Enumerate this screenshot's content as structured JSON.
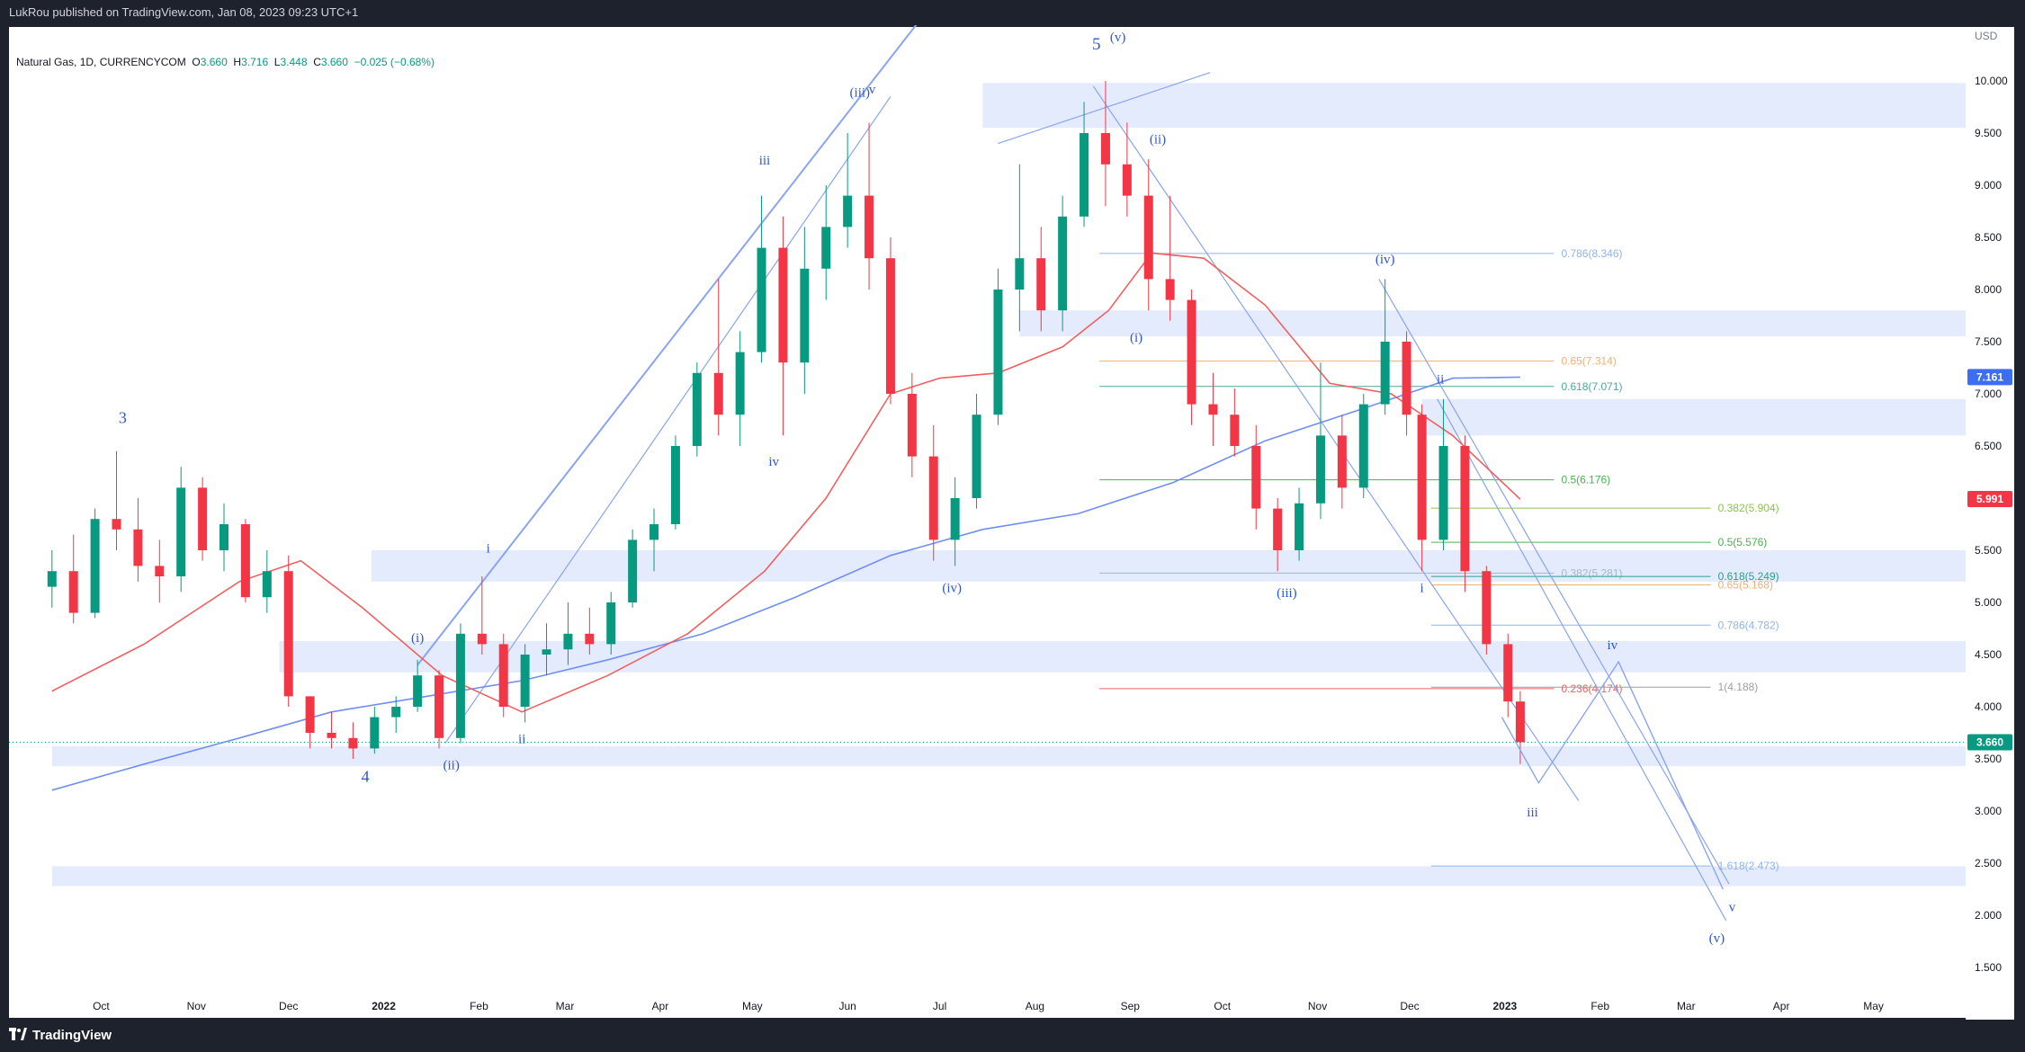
{
  "header": {
    "published": "LukRou published on TradingView.com, Jan 08, 2023 09:23 UTC+1"
  },
  "legend": {
    "symbol": "Natural Gas, 1D, CURRENCYCOM",
    "o_label": "O",
    "o": "3.660",
    "h_label": "H",
    "h": "3.716",
    "l_label": "L",
    "l": "3.448",
    "c_label": "C",
    "c": "3.660",
    "change": "−0.025 (−0.68%)"
  },
  "footer": {
    "brand": "TradingView"
  },
  "colors": {
    "up": "#089981",
    "down": "#f23645",
    "zone": "#dbe4fb",
    "ma_fast": "#f06060",
    "ma_slow": "#6f8ff0",
    "wave": "#2d56d6"
  },
  "chart_data": {
    "type": "candlestick",
    "instrument": "Natural Gas",
    "timeframe": "1D",
    "currency_label": "USD",
    "y_ticks": [
      "10.000",
      "9.500",
      "9.000",
      "8.500",
      "8.000",
      "7.500",
      "7.000",
      "6.500",
      "6.000",
      "5.500",
      "5.000",
      "4.500",
      "4.000",
      "3.500",
      "3.000",
      "2.500",
      "2.000",
      "1.500"
    ],
    "x_ticks": [
      "Oct",
      "Nov",
      "Dec",
      "2022",
      "Feb",
      "Mar",
      "Apr",
      "May",
      "Jun",
      "Jul",
      "Aug",
      "Sep",
      "Oct",
      "Nov",
      "Dec",
      "2023",
      "Feb",
      "Mar",
      "Apr",
      "May"
    ],
    "ylim": [
      1.15,
      10.45
    ],
    "price_tags": [
      {
        "value": 7.161,
        "label": "7.161",
        "color": "#3d6df2"
      },
      {
        "value": 5.991,
        "label": "5.991",
        "color": "#f23645"
      },
      {
        "value": 3.66,
        "label": "3.660",
        "color": "#089981"
      }
    ],
    "last_price": 3.66,
    "zones": [
      {
        "from": 9.55,
        "to": 9.98,
        "start": "2022-07-15"
      },
      {
        "from": 7.55,
        "to": 7.8,
        "start": "2022-07-27"
      },
      {
        "from": 6.6,
        "to": 6.95,
        "start": "2022-12-05"
      },
      {
        "from": 5.2,
        "to": 5.5,
        "start": "2021-12-28"
      },
      {
        "from": 4.33,
        "to": 4.63,
        "start": "2021-11-28"
      },
      {
        "from": 3.43,
        "to": 3.62,
        "start": "2021-09-15"
      },
      {
        "from": 2.28,
        "to": 2.47,
        "start": "2021-09-15"
      }
    ],
    "fib_levels": [
      {
        "label": "0.786(8.346)",
        "value": 8.346,
        "color": "#90b4ee",
        "from": "2022-08-22",
        "to": "2023-01-17"
      },
      {
        "label": "0.65(7.314)",
        "value": 7.314,
        "color": "#f0b070",
        "from": "2022-08-22",
        "to": "2023-01-17"
      },
      {
        "label": "0.618(7.071)",
        "value": 7.071,
        "color": "#4ca998",
        "from": "2022-08-22",
        "to": "2023-01-17"
      },
      {
        "label": "0.5(6.176)",
        "value": 6.176,
        "color": "#4caf50",
        "from": "2022-08-22",
        "to": "2023-01-17"
      },
      {
        "label": "0.382(5.904)",
        "value": 5.904,
        "color": "#8bc34a",
        "from": "2022-12-08",
        "to": "2023-03-09"
      },
      {
        "label": "0.5(5.576)",
        "value": 5.576,
        "color": "#4caf50",
        "from": "2022-12-08",
        "to": "2023-03-09"
      },
      {
        "label": "0.382(5.281)",
        "value": 5.281,
        "color": "#a0b8d0",
        "from": "2022-08-22",
        "to": "2023-01-17"
      },
      {
        "label": "0.618(5.249)",
        "value": 5.249,
        "color": "#2f9c8e",
        "from": "2022-12-08",
        "to": "2023-03-09"
      },
      {
        "label": "0.65(5.168)",
        "value": 5.168,
        "color": "#f0b070",
        "from": "2022-12-08",
        "to": "2023-03-09"
      },
      {
        "label": "0.786(4.782)",
        "value": 4.782,
        "color": "#90b4ee",
        "from": "2022-12-08",
        "to": "2023-03-09"
      },
      {
        "label": "0.236(4.174)",
        "value": 4.174,
        "color": "#f06060",
        "from": "2022-08-22",
        "to": "2023-01-17"
      },
      {
        "label": "1(4.188)",
        "value": 4.188,
        "color": "#9e9e9e",
        "from": "2022-12-08",
        "to": "2023-03-09"
      },
      {
        "label": "1.618(2.473)",
        "value": 2.473,
        "color": "#90b4ee",
        "from": "2022-12-08",
        "to": "2023-03-09"
      }
    ],
    "wave_labels": [
      {
        "text": "3",
        "date": "2021-10-08",
        "price": 6.72,
        "size": 18
      },
      {
        "text": "4",
        "date": "2021-12-26",
        "price": 3.28,
        "size": 18
      },
      {
        "text": "(i)",
        "date": "2022-01-12",
        "price": 4.62,
        "size": 15
      },
      {
        "text": "(ii)",
        "date": "2022-01-23",
        "price": 3.4,
        "size": 15
      },
      {
        "text": "i",
        "date": "2022-02-04",
        "price": 5.48,
        "size": 15
      },
      {
        "text": "ii",
        "date": "2022-02-15",
        "price": 3.65,
        "size": 15
      },
      {
        "text": "iii",
        "date": "2022-05-05",
        "price": 9.2,
        "size": 15
      },
      {
        "text": "iv",
        "date": "2022-05-08",
        "price": 6.31,
        "size": 15
      },
      {
        "text": "(iii)",
        "date": "2022-06-05",
        "price": 9.85,
        "size": 15
      },
      {
        "text": "v",
        "date": "2022-06-09",
        "price": 9.88,
        "size": 15
      },
      {
        "text": "(iv)",
        "date": "2022-07-05",
        "price": 5.1,
        "size": 15
      },
      {
        "text": "5",
        "date": "2022-08-21",
        "price": 10.3,
        "size": 19
      },
      {
        "text": "(v)",
        "date": "2022-08-28",
        "price": 10.38,
        "size": 15
      },
      {
        "text": "(ii)",
        "date": "2022-09-10",
        "price": 9.4,
        "size": 15
      },
      {
        "text": "(i)",
        "date": "2022-09-03",
        "price": 7.5,
        "size": 15
      },
      {
        "text": "(iii)",
        "date": "2022-10-22",
        "price": 5.05,
        "size": 15
      },
      {
        "text": "(iv)",
        "date": "2022-11-23",
        "price": 8.25,
        "size": 15
      },
      {
        "text": "ii",
        "date": "2022-12-11",
        "price": 7.1,
        "size": 15
      },
      {
        "text": "i",
        "date": "2022-12-05",
        "price": 5.1,
        "size": 15
      },
      {
        "text": "iv",
        "date": "2023-02-05",
        "price": 4.55,
        "size": 15
      },
      {
        "text": "iii",
        "date": "2023-01-10",
        "price": 2.95,
        "size": 15
      },
      {
        "text": "v",
        "date": "2023-03-16",
        "price": 2.04,
        "size": 15
      },
      {
        "text": "(v)",
        "date": "2023-03-11",
        "price": 1.74,
        "size": 15
      }
    ],
    "projection_path": [
      {
        "date": "2022-12-31",
        "price": 3.9
      },
      {
        "date": "2023-01-12",
        "price": 3.27
      },
      {
        "date": "2023-02-07",
        "price": 4.43
      },
      {
        "date": "2023-03-13",
        "price": 2.25
      }
    ],
    "trend_lines": [
      {
        "from": {
          "date": "2022-01-12",
          "price": 4.4
        },
        "to": {
          "date": "2022-06-25",
          "price": 10.6
        }
      },
      {
        "from": {
          "date": "2022-01-21",
          "price": 3.65
        },
        "to": {
          "date": "2022-06-15",
          "price": 9.85
        }
      },
      {
        "from": {
          "date": "2022-07-20",
          "price": 9.4
        },
        "to": {
          "date": "2022-09-27",
          "price": 10.08
        }
      },
      {
        "from": {
          "date": "2022-11-21",
          "price": 8.1
        },
        "to": {
          "date": "2023-03-15",
          "price": 2.3
        }
      },
      {
        "from": {
          "date": "2022-12-10",
          "price": 6.95
        },
        "to": {
          "date": "2023-03-14",
          "price": 1.95
        }
      },
      {
        "from": {
          "date": "2022-08-20",
          "price": 9.95
        },
        "to": {
          "date": "2023-01-25",
          "price": 3.1
        }
      }
    ],
    "candles": [
      {
        "d": "2021-09-15",
        "o": 5.15,
        "h": 5.5,
        "l": 4.95,
        "c": 5.3
      },
      {
        "d": "2021-09-22",
        "o": 5.3,
        "h": 5.65,
        "l": 4.8,
        "c": 4.9
      },
      {
        "d": "2021-09-29",
        "o": 4.9,
        "h": 5.9,
        "l": 4.85,
        "c": 5.8
      },
      {
        "d": "2021-10-06",
        "o": 5.8,
        "h": 6.45,
        "l": 5.5,
        "c": 5.7
      },
      {
        "d": "2021-10-13",
        "o": 5.7,
        "h": 6.0,
        "l": 5.2,
        "c": 5.35
      },
      {
        "d": "2021-10-20",
        "o": 5.35,
        "h": 5.6,
        "l": 5.0,
        "c": 5.25
      },
      {
        "d": "2021-10-27",
        "o": 5.25,
        "h": 6.3,
        "l": 5.1,
        "c": 6.1
      },
      {
        "d": "2021-11-03",
        "o": 6.1,
        "h": 6.2,
        "l": 5.4,
        "c": 5.5
      },
      {
        "d": "2021-11-10",
        "o": 5.5,
        "h": 5.95,
        "l": 5.3,
        "c": 5.75
      },
      {
        "d": "2021-11-17",
        "o": 5.75,
        "h": 5.8,
        "l": 5.0,
        "c": 5.05
      },
      {
        "d": "2021-11-24",
        "o": 5.05,
        "h": 5.5,
        "l": 4.9,
        "c": 5.3
      },
      {
        "d": "2021-12-01",
        "o": 5.3,
        "h": 5.45,
        "l": 4.0,
        "c": 4.1
      },
      {
        "d": "2021-12-08",
        "o": 4.1,
        "h": 4.1,
        "l": 3.6,
        "c": 3.75
      },
      {
        "d": "2021-12-15",
        "o": 3.75,
        "h": 3.95,
        "l": 3.6,
        "c": 3.7
      },
      {
        "d": "2021-12-22",
        "o": 3.7,
        "h": 3.85,
        "l": 3.5,
        "c": 3.6
      },
      {
        "d": "2021-12-29",
        "o": 3.6,
        "h": 4.0,
        "l": 3.55,
        "c": 3.9
      },
      {
        "d": "2022-01-05",
        "o": 3.9,
        "h": 4.1,
        "l": 3.75,
        "c": 4.0
      },
      {
        "d": "2022-01-12",
        "o": 4.0,
        "h": 4.45,
        "l": 3.95,
        "c": 4.3
      },
      {
        "d": "2022-01-19",
        "o": 4.3,
        "h": 4.35,
        "l": 3.6,
        "c": 3.7
      },
      {
        "d": "2022-01-26",
        "o": 3.7,
        "h": 4.8,
        "l": 3.65,
        "c": 4.7
      },
      {
        "d": "2022-02-02",
        "o": 4.7,
        "h": 5.25,
        "l": 4.5,
        "c": 4.6
      },
      {
        "d": "2022-02-09",
        "o": 4.6,
        "h": 4.7,
        "l": 3.9,
        "c": 4.0
      },
      {
        "d": "2022-02-16",
        "o": 4.0,
        "h": 4.6,
        "l": 3.85,
        "c": 4.5
      },
      {
        "d": "2022-02-23",
        "o": 4.5,
        "h": 4.8,
        "l": 4.3,
        "c": 4.55
      },
      {
        "d": "2022-03-02",
        "o": 4.55,
        "h": 5.0,
        "l": 4.4,
        "c": 4.7
      },
      {
        "d": "2022-03-09",
        "o": 4.7,
        "h": 4.95,
        "l": 4.5,
        "c": 4.6
      },
      {
        "d": "2022-03-16",
        "o": 4.6,
        "h": 5.1,
        "l": 4.5,
        "c": 5.0
      },
      {
        "d": "2022-03-23",
        "o": 5.0,
        "h": 5.7,
        "l": 4.95,
        "c": 5.6
      },
      {
        "d": "2022-03-30",
        "o": 5.6,
        "h": 5.9,
        "l": 5.3,
        "c": 5.75
      },
      {
        "d": "2022-04-06",
        "o": 5.75,
        "h": 6.6,
        "l": 5.7,
        "c": 6.5
      },
      {
        "d": "2022-04-13",
        "o": 6.5,
        "h": 7.3,
        "l": 6.4,
        "c": 7.2
      },
      {
        "d": "2022-04-20",
        "o": 7.2,
        "h": 8.1,
        "l": 6.6,
        "c": 6.8
      },
      {
        "d": "2022-04-27",
        "o": 6.8,
        "h": 7.6,
        "l": 6.5,
        "c": 7.4
      },
      {
        "d": "2022-05-04",
        "o": 7.4,
        "h": 8.9,
        "l": 7.3,
        "c": 8.4
      },
      {
        "d": "2022-05-11",
        "o": 8.4,
        "h": 8.7,
        "l": 6.6,
        "c": 7.3
      },
      {
        "d": "2022-05-18",
        "o": 7.3,
        "h": 8.6,
        "l": 7.0,
        "c": 8.2
      },
      {
        "d": "2022-05-25",
        "o": 8.2,
        "h": 9.0,
        "l": 7.9,
        "c": 8.6
      },
      {
        "d": "2022-06-01",
        "o": 8.6,
        "h": 9.5,
        "l": 8.4,
        "c": 8.9
      },
      {
        "d": "2022-06-08",
        "o": 8.9,
        "h": 9.6,
        "l": 8.0,
        "c": 8.3
      },
      {
        "d": "2022-06-15",
        "o": 8.3,
        "h": 8.5,
        "l": 6.9,
        "c": 7.0
      },
      {
        "d": "2022-06-22",
        "o": 7.0,
        "h": 7.2,
        "l": 6.2,
        "c": 6.4
      },
      {
        "d": "2022-06-29",
        "o": 6.4,
        "h": 6.7,
        "l": 5.4,
        "c": 5.6
      },
      {
        "d": "2022-07-06",
        "o": 5.6,
        "h": 6.2,
        "l": 5.35,
        "c": 6.0
      },
      {
        "d": "2022-07-13",
        "o": 6.0,
        "h": 7.0,
        "l": 5.9,
        "c": 6.8
      },
      {
        "d": "2022-07-20",
        "o": 6.8,
        "h": 8.2,
        "l": 6.7,
        "c": 8.0
      },
      {
        "d": "2022-07-27",
        "o": 8.0,
        "h": 9.2,
        "l": 7.6,
        "c": 8.3
      },
      {
        "d": "2022-08-03",
        "o": 8.3,
        "h": 8.6,
        "l": 7.6,
        "c": 7.8
      },
      {
        "d": "2022-08-10",
        "o": 7.8,
        "h": 8.9,
        "l": 7.6,
        "c": 8.7
      },
      {
        "d": "2022-08-17",
        "o": 8.7,
        "h": 9.8,
        "l": 8.6,
        "c": 9.5
      },
      {
        "d": "2022-08-24",
        "o": 9.5,
        "h": 10.0,
        "l": 8.8,
        "c": 9.2
      },
      {
        "d": "2022-08-31",
        "o": 9.2,
        "h": 9.6,
        "l": 8.7,
        "c": 8.9
      },
      {
        "d": "2022-09-07",
        "o": 8.9,
        "h": 9.25,
        "l": 7.8,
        "c": 8.1
      },
      {
        "d": "2022-09-14",
        "o": 8.1,
        "h": 8.9,
        "l": 7.7,
        "c": 7.9
      },
      {
        "d": "2022-09-21",
        "o": 7.9,
        "h": 8.0,
        "l": 6.7,
        "c": 6.9
      },
      {
        "d": "2022-09-28",
        "o": 6.9,
        "h": 7.2,
        "l": 6.5,
        "c": 6.8
      },
      {
        "d": "2022-10-05",
        "o": 6.8,
        "h": 7.05,
        "l": 6.4,
        "c": 6.5
      },
      {
        "d": "2022-10-12",
        "o": 6.5,
        "h": 6.7,
        "l": 5.7,
        "c": 5.9
      },
      {
        "d": "2022-10-19",
        "o": 5.9,
        "h": 6.0,
        "l": 5.3,
        "c": 5.5
      },
      {
        "d": "2022-10-26",
        "o": 5.5,
        "h": 6.1,
        "l": 5.4,
        "c": 5.95
      },
      {
        "d": "2022-11-02",
        "o": 5.95,
        "h": 7.3,
        "l": 5.8,
        "c": 6.6
      },
      {
        "d": "2022-11-09",
        "o": 6.6,
        "h": 6.8,
        "l": 5.9,
        "c": 6.1
      },
      {
        "d": "2022-11-16",
        "o": 6.1,
        "h": 7.0,
        "l": 6.0,
        "c": 6.9
      },
      {
        "d": "2022-11-23",
        "o": 6.9,
        "h": 8.1,
        "l": 6.8,
        "c": 7.5
      },
      {
        "d": "2022-11-30",
        "o": 7.5,
        "h": 7.6,
        "l": 6.6,
        "c": 6.8
      },
      {
        "d": "2022-12-05",
        "o": 6.8,
        "h": 6.9,
        "l": 5.3,
        "c": 5.6
      },
      {
        "d": "2022-12-12",
        "o": 5.6,
        "h": 6.95,
        "l": 5.5,
        "c": 6.5
      },
      {
        "d": "2022-12-19",
        "o": 6.5,
        "h": 6.6,
        "l": 5.1,
        "c": 5.3
      },
      {
        "d": "2022-12-26",
        "o": 5.3,
        "h": 5.35,
        "l": 4.5,
        "c": 4.6
      },
      {
        "d": "2023-01-02",
        "o": 4.6,
        "h": 4.7,
        "l": 3.9,
        "c": 4.05
      },
      {
        "d": "2023-01-06",
        "o": 4.05,
        "h": 4.15,
        "l": 3.45,
        "c": 3.66
      }
    ],
    "ma_fast": [
      {
        "d": "2021-09-15",
        "v": 4.15
      },
      {
        "d": "2021-10-15",
        "v": 4.6
      },
      {
        "d": "2021-11-15",
        "v": 5.2
      },
      {
        "d": "2021-12-05",
        "v": 5.4
      },
      {
        "d": "2021-12-25",
        "v": 4.95
      },
      {
        "d": "2022-01-20",
        "v": 4.3
      },
      {
        "d": "2022-02-15",
        "v": 3.95
      },
      {
        "d": "2022-03-15",
        "v": 4.3
      },
      {
        "d": "2022-04-10",
        "v": 4.7
      },
      {
        "d": "2022-05-05",
        "v": 5.3
      },
      {
        "d": "2022-05-25",
        "v": 6.0
      },
      {
        "d": "2022-06-15",
        "v": 7.0
      },
      {
        "d": "2022-07-01",
        "v": 7.15
      },
      {
        "d": "2022-07-20",
        "v": 7.2
      },
      {
        "d": "2022-08-10",
        "v": 7.45
      },
      {
        "d": "2022-08-25",
        "v": 7.8
      },
      {
        "d": "2022-09-08",
        "v": 8.35
      },
      {
        "d": "2022-09-25",
        "v": 8.3
      },
      {
        "d": "2022-10-15",
        "v": 7.85
      },
      {
        "d": "2022-11-05",
        "v": 7.1
      },
      {
        "d": "2022-11-25",
        "v": 7.0
      },
      {
        "d": "2022-12-15",
        "v": 6.6
      },
      {
        "d": "2023-01-06",
        "v": 5.99
      }
    ],
    "ma_slow": [
      {
        "d": "2021-09-15",
        "v": 3.2
      },
      {
        "d": "2021-10-15",
        "v": 3.45
      },
      {
        "d": "2021-11-15",
        "v": 3.7
      },
      {
        "d": "2021-12-15",
        "v": 3.95
      },
      {
        "d": "2022-01-15",
        "v": 4.1
      },
      {
        "d": "2022-02-15",
        "v": 4.25
      },
      {
        "d": "2022-03-15",
        "v": 4.45
      },
      {
        "d": "2022-04-15",
        "v": 4.7
      },
      {
        "d": "2022-05-15",
        "v": 5.05
      },
      {
        "d": "2022-06-15",
        "v": 5.45
      },
      {
        "d": "2022-07-15",
        "v": 5.7
      },
      {
        "d": "2022-08-15",
        "v": 5.85
      },
      {
        "d": "2022-09-15",
        "v": 6.15
      },
      {
        "d": "2022-10-15",
        "v": 6.55
      },
      {
        "d": "2022-11-15",
        "v": 6.85
      },
      {
        "d": "2022-12-15",
        "v": 7.15
      },
      {
        "d": "2023-01-06",
        "v": 7.16
      }
    ]
  }
}
